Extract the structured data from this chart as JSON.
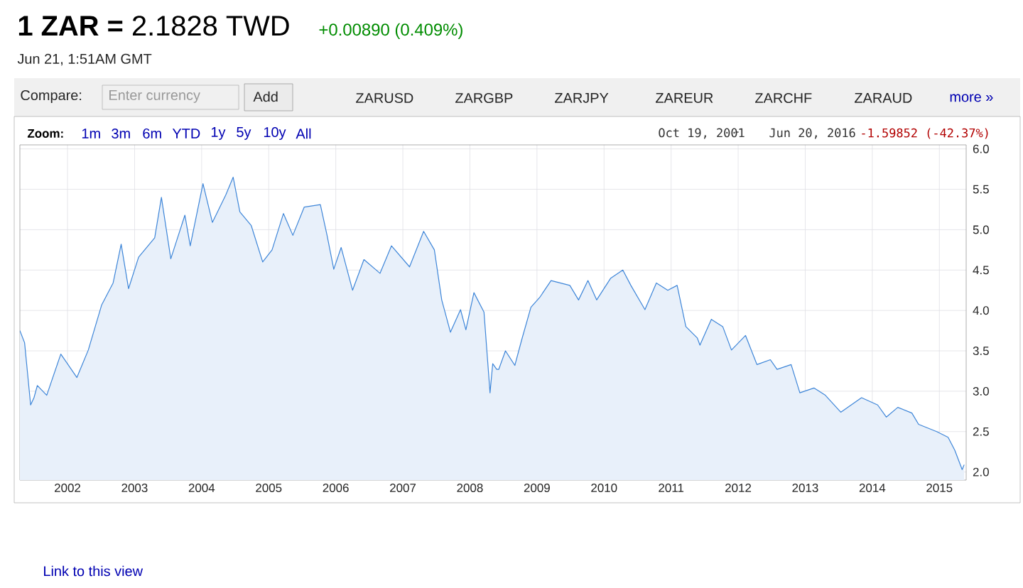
{
  "chart_data": {
    "type": "area",
    "title": "**1 ZAR =** 2.1828 TWD",
    "subtitle": "+0.00890 (0.409%)",
    "annotations": [
      "Jun 21, 1:51AM GMT",
      "Compare:",
      "Enter currency",
      "Add",
      "ZARUSD",
      "ZARGBP",
      "ZARJPY",
      "ZAREUR",
      "ZARCHF",
      "ZARAUD",
      "more »",
      "Zoom:",
      "1m",
      "3m",
      "6m",
      "YTD",
      "1y",
      "5y",
      "10y",
      "All",
      "Oct 19, 2001",
      "-",
      "Jun 20, 2016",
      "-1.59852 (-42.37%)",
      "Link to this view"
    ],
    "series": [
      {
        "color": "#3d85d8",
        "x": [
          2001.79,
          2001.86,
          2001.95,
          2002.0,
          2002.05,
          2002.19,
          2002.4,
          2002.64,
          2002.81,
          2003.01,
          2003.18,
          2003.3,
          2003.41,
          2003.56,
          2003.8,
          2003.9,
          2004.04,
          2004.25,
          2004.33,
          2004.52,
          2004.66,
          2004.86,
          2004.97,
          2005.07,
          2005.24,
          2005.41,
          2005.55,
          2005.72,
          2005.86,
          2006.03,
          2006.27,
          2006.37,
          2006.47,
          2006.58,
          2006.75,
          2006.92,
          2007.16,
          2007.33,
          2007.6,
          2007.81,
          2007.97,
          2008.08,
          2008.21,
          2008.36,
          2008.44,
          2008.56,
          2008.71,
          2008.8,
          2008.84,
          2008.9,
          2008.93,
          2009.03,
          2009.17,
          2009.27,
          2009.41,
          2009.54,
          2009.71,
          2009.99,
          2010.12,
          2010.26,
          2010.39,
          2010.6,
          2010.78,
          2010.9,
          2011.11,
          2011.28,
          2011.45,
          2011.59,
          2011.72,
          2011.89,
          2011.93,
          2012.1,
          2012.27,
          2012.4,
          2012.61,
          2012.78,
          2012.98,
          2013.08,
          2013.29,
          2013.42,
          2013.63,
          2013.8,
          2014.03,
          2014.34,
          2014.58,
          2014.71,
          2014.88,
          2015.09,
          2015.19,
          2015.46,
          2015.63,
          2015.73,
          2015.84,
          2015.87
        ],
        "values": [
          3.75,
          3.6,
          2.83,
          2.92,
          3.07,
          2.95,
          3.46,
          3.17,
          3.51,
          4.07,
          4.34,
          4.82,
          4.27,
          4.66,
          4.9,
          5.4,
          4.64,
          5.18,
          4.8,
          5.57,
          5.09,
          5.43,
          5.65,
          5.22,
          5.05,
          4.6,
          4.75,
          5.2,
          4.93,
          5.28,
          5.31,
          4.93,
          4.51,
          4.78,
          4.25,
          4.63,
          4.46,
          4.8,
          4.54,
          4.98,
          4.75,
          4.13,
          3.73,
          4.01,
          3.76,
          4.22,
          3.98,
          2.98,
          3.34,
          3.27,
          3.27,
          3.5,
          3.32,
          3.63,
          4.04,
          4.16,
          4.37,
          4.31,
          4.13,
          4.37,
          4.13,
          4.4,
          4.5,
          4.31,
          4.01,
          4.34,
          4.25,
          4.31,
          3.8,
          3.66,
          3.57,
          3.89,
          3.8,
          3.51,
          3.69,
          3.33,
          3.39,
          3.27,
          3.33,
          2.98,
          3.04,
          2.95,
          2.74,
          2.92,
          2.83,
          2.68,
          2.8,
          2.73,
          2.59,
          2.5,
          2.43,
          2.27,
          2.03,
          2.09
        ]
      }
    ],
    "xlim": [
      2001.79,
      2015.9
    ],
    "ylim": [
      1.9,
      6.05
    ],
    "xticks": [
      {
        "value": 2002.5,
        "label": "2002"
      },
      {
        "value": 2003.5,
        "label": "2003"
      },
      {
        "value": 2004.5,
        "label": "2004"
      },
      {
        "value": 2005.5,
        "label": "2005"
      },
      {
        "value": 2006.5,
        "label": "2006"
      },
      {
        "value": 2007.5,
        "label": "2007"
      },
      {
        "value": 2008.5,
        "label": "2008"
      },
      {
        "value": 2009.5,
        "label": "2009"
      },
      {
        "value": 2010.5,
        "label": "2010"
      },
      {
        "value": 2011.5,
        "label": "2011"
      },
      {
        "value": 2012.5,
        "label": "2012"
      },
      {
        "value": 2013.5,
        "label": "2013"
      },
      {
        "value": 2014.5,
        "label": "2014"
      },
      {
        "value": 2015.5,
        "label": "2015"
      }
    ],
    "yticks": [
      {
        "value": 2,
        "label": "2.0"
      },
      2.5,
      {
        "value": 3,
        "label": "3.0"
      },
      3.5,
      {
        "value": 4,
        "label": "4.0"
      },
      4.5,
      {
        "value": 5,
        "label": "5.0"
      },
      5.5,
      {
        "value": 6,
        "label": "6.0"
      }
    ],
    "grid": true
  }
}
